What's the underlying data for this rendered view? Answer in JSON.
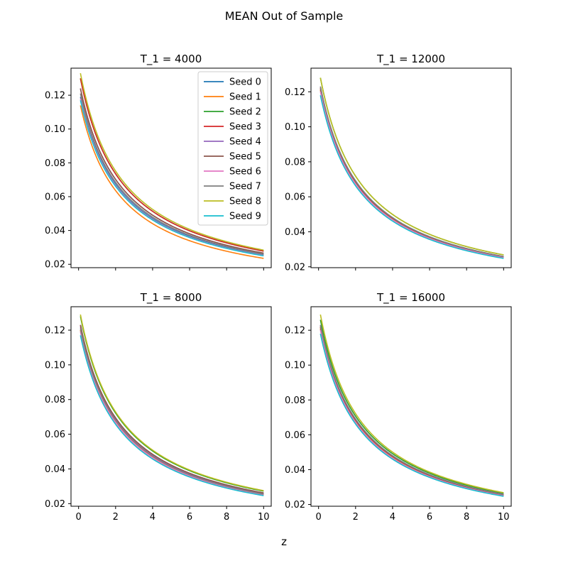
{
  "figure": {
    "title": "MEAN Out of Sample",
    "xlabel": "z"
  },
  "chart_data": {
    "type": "line",
    "title": "MEAN Out of Sample",
    "xlabel": "z",
    "ylabel": "",
    "xlim": [
      -0.41,
      10.41
    ],
    "xticks": [
      0,
      2,
      4,
      6,
      8,
      10
    ],
    "x_values": [
      0.1,
      0.2,
      0.35,
      0.5,
      0.75,
      1.0,
      1.25,
      1.5,
      2.0,
      2.5,
      3.0,
      3.5,
      4.0,
      5.0,
      6.0,
      7.0,
      8.0,
      9.0,
      10.0
    ],
    "shared_x_axis": true,
    "legend": {
      "placement": "upper-right",
      "panel": 0
    },
    "series_colors": [
      "#1f77b4",
      "#ff7f0e",
      "#2ca02c",
      "#d62728",
      "#9467bd",
      "#8c564b",
      "#e377c2",
      "#7f7f7f",
      "#bcbd22",
      "#17becf"
    ],
    "series_names": [
      "Seed 0",
      "Seed 1",
      "Seed 2",
      "Seed 3",
      "Seed 4",
      "Seed 5",
      "Seed 6",
      "Seed 7",
      "Seed 8",
      "Seed 9"
    ],
    "panels": [
      {
        "title": "T_1 = 4000",
        "ylim": [
          0.018,
          0.136
        ],
        "yticks": [
          "0.02",
          "0.04",
          "0.06",
          "0.08",
          "0.10",
          "0.12"
        ],
        "series": [
          {
            "name": "Seed 0",
            "y0": 0.119,
            "y10": 0.0255
          },
          {
            "name": "Seed 1",
            "y0": 0.114,
            "y10": 0.0235
          },
          {
            "name": "Seed 2",
            "y0": 0.13,
            "y10": 0.0278
          },
          {
            "name": "Seed 3",
            "y0": 0.13,
            "y10": 0.0278
          },
          {
            "name": "Seed 4",
            "y0": 0.124,
            "y10": 0.0266
          },
          {
            "name": "Seed 5",
            "y0": 0.124,
            "y10": 0.0266
          },
          {
            "name": "Seed 6",
            "y0": 0.118,
            "y10": 0.0252
          },
          {
            "name": "Seed 7",
            "y0": 0.121,
            "y10": 0.026
          },
          {
            "name": "Seed 8",
            "y0": 0.133,
            "y10": 0.0284
          },
          {
            "name": "Seed 9",
            "y0": 0.117,
            "y10": 0.025
          }
        ]
      },
      {
        "title": "T_1 = 12000",
        "ylim": [
          0.0195,
          0.1335
        ],
        "yticks": [
          "0.02",
          "0.04",
          "0.06",
          "0.08",
          "0.10",
          "0.12"
        ],
        "series": [
          {
            "name": "Seed 0",
            "y0": 0.121,
            "y10": 0.0255
          },
          {
            "name": "Seed 1",
            "y0": 0.121,
            "y10": 0.0255
          },
          {
            "name": "Seed 2",
            "y0": 0.128,
            "y10": 0.0268
          },
          {
            "name": "Seed 3",
            "y0": 0.122,
            "y10": 0.0258
          },
          {
            "name": "Seed 4",
            "y0": 0.123,
            "y10": 0.0258
          },
          {
            "name": "Seed 5",
            "y0": 0.122,
            "y10": 0.0257
          },
          {
            "name": "Seed 6",
            "y0": 0.12,
            "y10": 0.0252
          },
          {
            "name": "Seed 7",
            "y0": 0.123,
            "y10": 0.0259
          },
          {
            "name": "Seed 8",
            "y0": 0.128,
            "y10": 0.0268
          },
          {
            "name": "Seed 9",
            "y0": 0.118,
            "y10": 0.0248
          }
        ]
      },
      {
        "title": "T_1 = 8000",
        "ylim": [
          0.0185,
          0.1335
        ],
        "yticks": [
          "0.02",
          "0.04",
          "0.06",
          "0.08",
          "0.10",
          "0.12"
        ],
        "series": [
          {
            "name": "Seed 0",
            "y0": 0.12,
            "y10": 0.0252
          },
          {
            "name": "Seed 1",
            "y0": 0.12,
            "y10": 0.0252
          },
          {
            "name": "Seed 2",
            "y0": 0.128,
            "y10": 0.0272
          },
          {
            "name": "Seed 3",
            "y0": 0.123,
            "y10": 0.026
          },
          {
            "name": "Seed 4",
            "y0": 0.122,
            "y10": 0.0258
          },
          {
            "name": "Seed 5",
            "y0": 0.123,
            "y10": 0.0262
          },
          {
            "name": "Seed 6",
            "y0": 0.119,
            "y10": 0.025
          },
          {
            "name": "Seed 7",
            "y0": 0.121,
            "y10": 0.0255
          },
          {
            "name": "Seed 8",
            "y0": 0.129,
            "y10": 0.0275
          },
          {
            "name": "Seed 9",
            "y0": 0.117,
            "y10": 0.0246
          }
        ]
      },
      {
        "title": "T_1 = 16000",
        "ylim": [
          0.019,
          0.1335
        ],
        "yticks": [
          "0.02",
          "0.04",
          "0.06",
          "0.08",
          "0.10",
          "0.12"
        ],
        "series": [
          {
            "name": "Seed 0",
            "y0": 0.121,
            "y10": 0.0252
          },
          {
            "name": "Seed 1",
            "y0": 0.121,
            "y10": 0.0252
          },
          {
            "name": "Seed 2",
            "y0": 0.126,
            "y10": 0.0264
          },
          {
            "name": "Seed 3",
            "y0": 0.122,
            "y10": 0.0256
          },
          {
            "name": "Seed 4",
            "y0": 0.123,
            "y10": 0.0258
          },
          {
            "name": "Seed 5",
            "y0": 0.122,
            "y10": 0.0256
          },
          {
            "name": "Seed 6",
            "y0": 0.12,
            "y10": 0.025
          },
          {
            "name": "Seed 7",
            "y0": 0.123,
            "y10": 0.0258
          },
          {
            "name": "Seed 8",
            "y0": 0.129,
            "y10": 0.0268
          },
          {
            "name": "Seed 9",
            "y0": 0.118,
            "y10": 0.0247
          }
        ]
      }
    ]
  }
}
